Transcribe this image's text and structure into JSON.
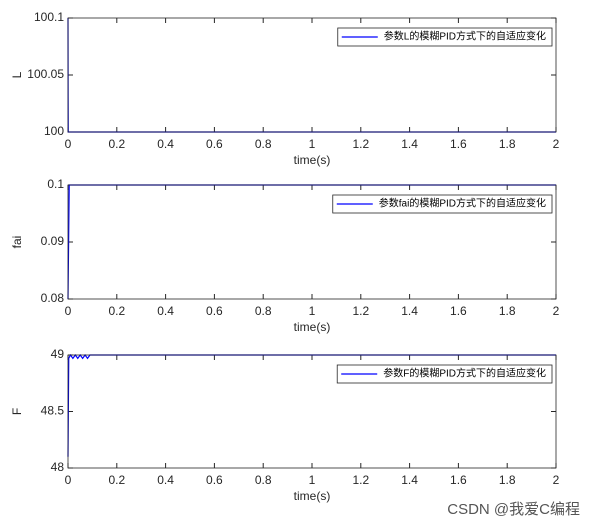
{
  "chart_data": [
    {
      "type": "line",
      "xlabel": "time(s)",
      "ylabel": "L",
      "x": [
        0,
        0.0005,
        0.001,
        0.002,
        2
      ],
      "series": [
        {
          "name": "参数L的模糊PID方式下的自适应变化",
          "color": "#0000ff",
          "values": [
            100.1,
            100.03,
            100,
            100,
            100
          ]
        }
      ],
      "xlim": [
        0,
        2
      ],
      "xticks": [
        0,
        0.2,
        0.4,
        0.6,
        0.8,
        1,
        1.2,
        1.4,
        1.6,
        1.8,
        2
      ],
      "ylim": [
        100,
        100.1
      ],
      "yticks": [
        100,
        100.05,
        100.1
      ],
      "grid": false,
      "legend": "northeast"
    },
    {
      "type": "line",
      "xlabel": "time(s)",
      "ylabel": "fai",
      "x": [
        0,
        0.005,
        2
      ],
      "series": [
        {
          "name": "参数fai的模糊PID方式下的自适应变化",
          "color": "#0000ff",
          "values": [
            0.08,
            0.1,
            0.1
          ]
        }
      ],
      "xlim": [
        0,
        2
      ],
      "xticks": [
        0,
        0.2,
        0.4,
        0.6,
        0.8,
        1,
        1.2,
        1.4,
        1.6,
        1.8,
        2
      ],
      "ylim": [
        0.08,
        0.1
      ],
      "yticks": [
        0.08,
        0.09,
        0.1
      ],
      "grid": false,
      "legend": "northeast"
    },
    {
      "type": "line",
      "xlabel": "time(s)",
      "ylabel": "F",
      "x": [
        0,
        0.003,
        0.01,
        0.02,
        0.03,
        0.04,
        0.05,
        0.06,
        0.07,
        0.08,
        0.09,
        2
      ],
      "series": [
        {
          "name": "参数F的模糊PID方式下的自适应变化",
          "color": "#0000ff",
          "values": [
            48.1,
            48.97,
            49,
            48.97,
            49,
            48.97,
            49,
            48.97,
            49,
            48.97,
            49,
            49
          ]
        }
      ],
      "xlim": [
        0,
        2
      ],
      "xticks": [
        0,
        0.2,
        0.4,
        0.6,
        0.8,
        1,
        1.2,
        1.4,
        1.6,
        1.8,
        2
      ],
      "ylim": [
        48,
        49
      ],
      "yticks": [
        48,
        48.5,
        49
      ],
      "grid": false,
      "legend": "northeast"
    }
  ],
  "watermark": "CSDN @我爱C编程"
}
